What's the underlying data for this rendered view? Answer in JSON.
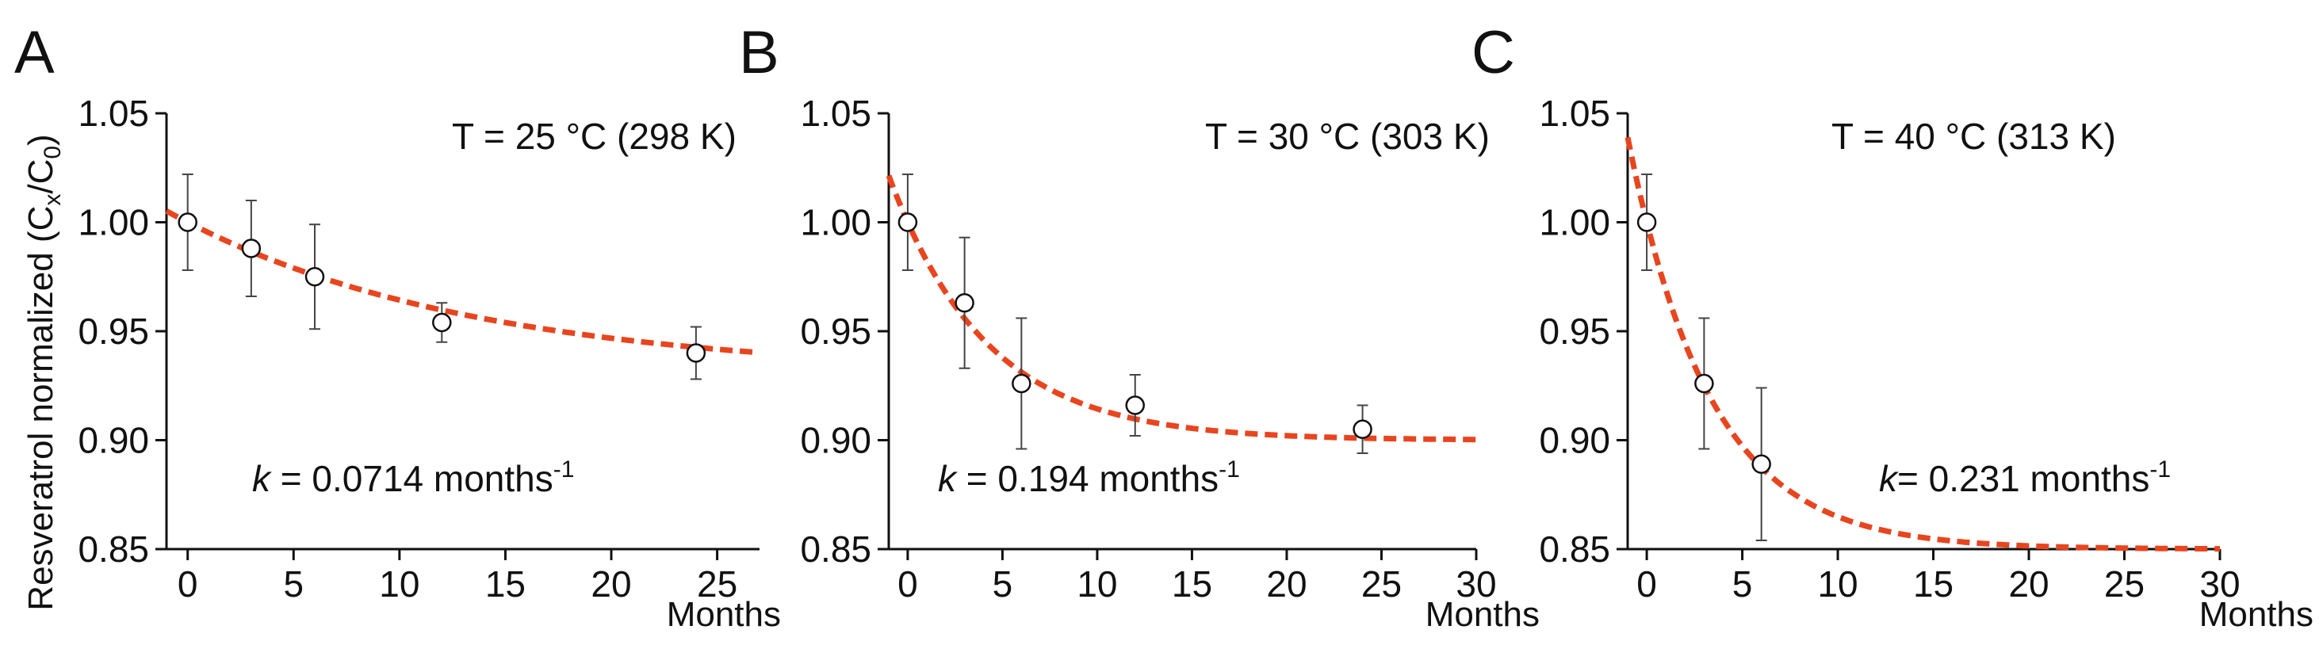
{
  "figure": {
    "ylabel_main": "Resveratrol normalized (C",
    "ylabel_sub1": "x",
    "ylabel_slash": "/C",
    "ylabel_sub2": "0",
    "ylabel_close": ")"
  },
  "chart_data": [
    {
      "type": "scatter",
      "panel": "A",
      "title": "T = 25 °C (298 K)",
      "xlabel": "Months",
      "ylabel": "Resveratrol normalized (Cx/C0)",
      "xlim": [
        -1,
        27
      ],
      "ylim": [
        0.85,
        1.05
      ],
      "xticks": [
        0,
        5,
        10,
        15,
        20,
        25
      ],
      "yticks": [
        0.85,
        0.9,
        0.95,
        1.0,
        1.05
      ],
      "ytick_labels": [
        "0.85",
        "0.90",
        "0.95",
        "1.00",
        "1.05"
      ],
      "points": [
        {
          "x": 0,
          "y": 1.0,
          "err": 0.022
        },
        {
          "x": 3,
          "y": 0.988,
          "err": 0.022
        },
        {
          "x": 6,
          "y": 0.975,
          "err": 0.024
        },
        {
          "x": 12,
          "y": 0.954,
          "err": 0.009
        },
        {
          "x": 24,
          "y": 0.94,
          "err": 0.012
        }
      ],
      "fit": {
        "model": "exponential",
        "k": 0.0714,
        "plateau": 0.93,
        "start": 1.0
      },
      "annotation": {
        "k_symbol": "k",
        "k_text": " = 0.0714 months",
        "k_sup": "-1"
      },
      "fit_color": "#e8451f",
      "grid": false,
      "legend": "none"
    },
    {
      "type": "scatter",
      "panel": "B",
      "title": "T = 30 °C (303 K)",
      "xlabel": "Months",
      "ylabel": "",
      "xlim": [
        -1,
        30
      ],
      "ylim": [
        0.85,
        1.05
      ],
      "xticks": [
        0,
        5,
        10,
        15,
        20,
        25,
        30
      ],
      "yticks": [
        0.85,
        0.9,
        0.95,
        1.0,
        1.05
      ],
      "ytick_labels": [
        "0.85",
        "0.90",
        "0.95",
        "1.00",
        "1.05"
      ],
      "points": [
        {
          "x": 0,
          "y": 1.0,
          "err": 0.022
        },
        {
          "x": 3,
          "y": 0.963,
          "err": 0.03
        },
        {
          "x": 6,
          "y": 0.926,
          "err": 0.03
        },
        {
          "x": 12,
          "y": 0.916,
          "err": 0.014
        },
        {
          "x": 24,
          "y": 0.905,
          "err": 0.011
        }
      ],
      "fit": {
        "model": "exponential",
        "k": 0.194,
        "plateau": 0.9,
        "start": 1.0
      },
      "annotation": {
        "k_symbol": "k",
        "k_text": " = 0.194 months",
        "k_sup": "-1"
      },
      "fit_color": "#e8451f",
      "grid": false,
      "legend": "none"
    },
    {
      "type": "scatter",
      "panel": "C",
      "title": "T = 40 °C (313 K)",
      "xlabel": "Months",
      "ylabel": "",
      "xlim": [
        -1,
        30
      ],
      "ylim": [
        0.85,
        1.05
      ],
      "xticks": [
        0,
        5,
        10,
        15,
        20,
        25,
        30
      ],
      "yticks": [
        0.85,
        0.9,
        0.95,
        1.0,
        1.05
      ],
      "ytick_labels": [
        "0.85",
        "0.90",
        "0.95",
        "1.00",
        "1.05"
      ],
      "points": [
        {
          "x": 0,
          "y": 1.0,
          "err": 0.022
        },
        {
          "x": 3,
          "y": 0.926,
          "err": 0.03
        },
        {
          "x": 6,
          "y": 0.889,
          "err": 0.035
        }
      ],
      "fit": {
        "model": "exponential",
        "k": 0.231,
        "plateau": 0.85,
        "start": 1.0
      },
      "annotation": {
        "k_symbol": "k",
        "k_text": "= 0.231 months",
        "k_sup": "-1"
      },
      "fit_color": "#e8451f",
      "grid": false,
      "legend": "none"
    }
  ]
}
